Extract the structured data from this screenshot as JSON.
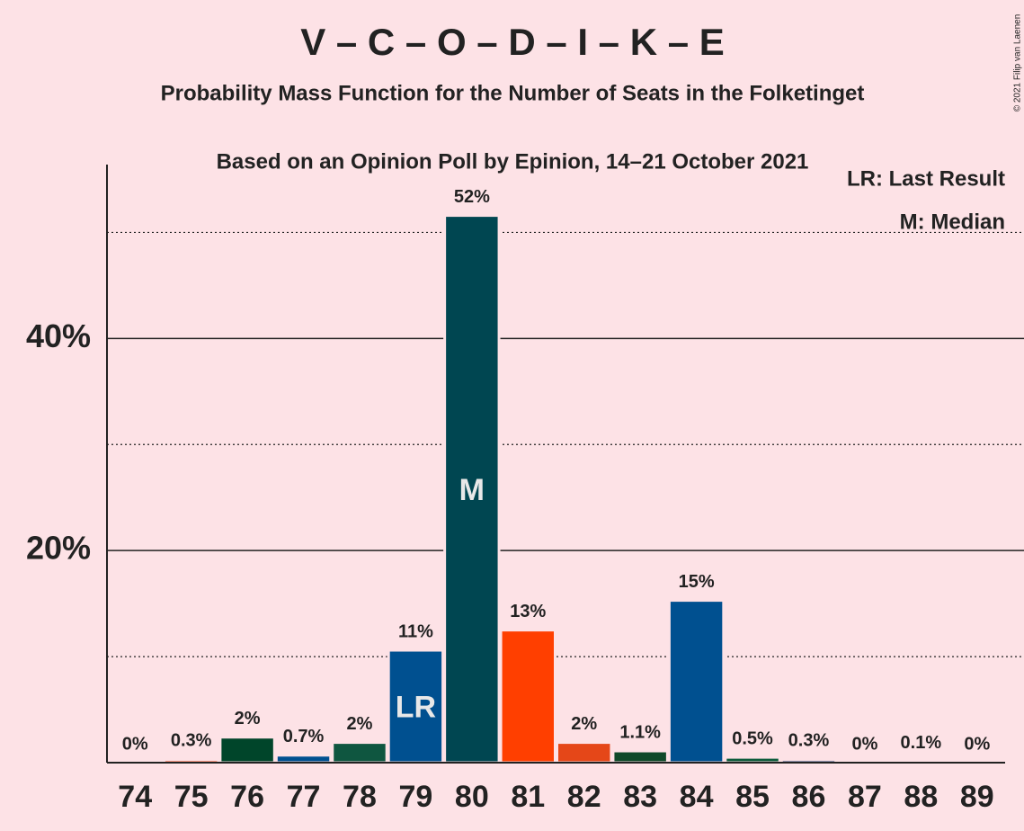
{
  "chart_data": {
    "type": "bar",
    "title": "V – C – O – D – I – K – E",
    "subtitle": "Probability Mass Function for the Number of Seats in the Folketinget",
    "subtitle2": "Based on an Opinion Poll by Epinion, 14–21 October 2021",
    "copyright": "© 2021 Filip van Laenen",
    "categories": [
      "74",
      "75",
      "76",
      "77",
      "78",
      "79",
      "80",
      "81",
      "82",
      "83",
      "84",
      "85",
      "86",
      "87",
      "88",
      "89"
    ],
    "values": [
      0,
      0.3,
      2.4,
      0.7,
      1.9,
      10.6,
      51.6,
      12.5,
      1.9,
      1.1,
      15.3,
      0.5,
      0.3,
      0,
      0.1,
      0
    ],
    "value_labels": [
      "0%",
      "0.3%",
      "2%",
      "0.7%",
      "2%",
      "11%",
      "52%",
      "13%",
      "2%",
      "1.1%",
      "15%",
      "0.5%",
      "0.3%",
      "0%",
      "0.1%",
      "0%"
    ],
    "colors": [
      "#005090",
      "#e8491d",
      "#00452a",
      "#005090",
      "#0f5640",
      "#005090",
      "#004651",
      "#ff3f00",
      "#e54718",
      "#0f4a2a",
      "#005090",
      "#0e5c3c",
      "#1f3a6a",
      "#005090",
      "#005090",
      "#005090"
    ],
    "annotations": [
      {
        "at": "79",
        "text": "LR"
      },
      {
        "at": "80",
        "text": "M"
      }
    ],
    "legend": [
      "LR: Last Result",
      "M: Median"
    ],
    "legend_position": "top-right",
    "ylim": [
      0,
      56.4
    ],
    "yticks": [
      {
        "value": 20,
        "label": "20%"
      },
      {
        "value": 40,
        "label": "40%"
      }
    ],
    "minor_yticks": [
      10,
      30,
      50
    ],
    "grid": true
  }
}
